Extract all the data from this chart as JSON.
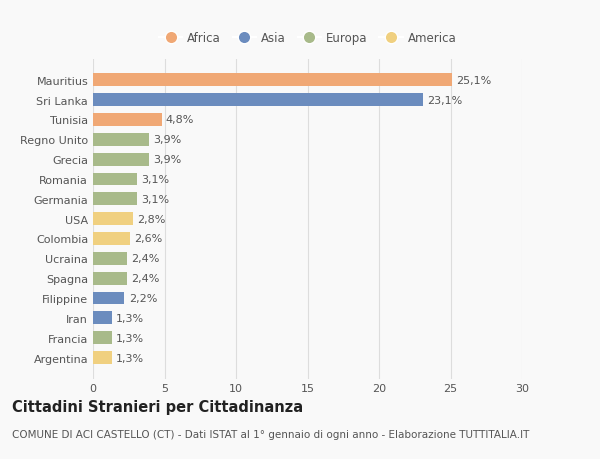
{
  "countries": [
    "Argentina",
    "Francia",
    "Iran",
    "Filippine",
    "Spagna",
    "Ucraina",
    "Colombia",
    "USA",
    "Germania",
    "Romania",
    "Grecia",
    "Regno Unito",
    "Tunisia",
    "Sri Lanka",
    "Mauritius"
  ],
  "values": [
    1.3,
    1.3,
    1.3,
    2.2,
    2.4,
    2.4,
    2.6,
    2.8,
    3.1,
    3.1,
    3.9,
    3.9,
    4.8,
    23.1,
    25.1
  ],
  "labels": [
    "1,3%",
    "1,3%",
    "1,3%",
    "2,2%",
    "2,4%",
    "2,4%",
    "2,6%",
    "2,8%",
    "3,1%",
    "3,1%",
    "3,9%",
    "3,9%",
    "4,8%",
    "23,1%",
    "25,1%"
  ],
  "continents": [
    "America",
    "Europa",
    "Asia",
    "Asia",
    "Europa",
    "Europa",
    "America",
    "America",
    "Europa",
    "Europa",
    "Europa",
    "Europa",
    "Africa",
    "Asia",
    "Africa"
  ],
  "colors": {
    "Africa": "#F0A875",
    "Asia": "#6B8CBE",
    "Europa": "#A8BA8A",
    "America": "#F0D080"
  },
  "legend_order": [
    "Africa",
    "Asia",
    "Europa",
    "America"
  ],
  "bar_height": 0.65,
  "xlim": [
    0,
    30
  ],
  "xticks": [
    0,
    5,
    10,
    15,
    20,
    25,
    30
  ],
  "title": "Cittadini Stranieri per Cittadinanza",
  "subtitle": "COMUNE DI ACI CASTELLO (CT) - Dati ISTAT al 1° gennaio di ogni anno - Elaborazione TUTTITALIA.IT",
  "bg_color": "#f9f9f9",
  "grid_color": "#dddddd",
  "title_fontsize": 10.5,
  "subtitle_fontsize": 7.5,
  "label_fontsize": 8,
  "tick_fontsize": 8,
  "legend_fontsize": 8.5
}
